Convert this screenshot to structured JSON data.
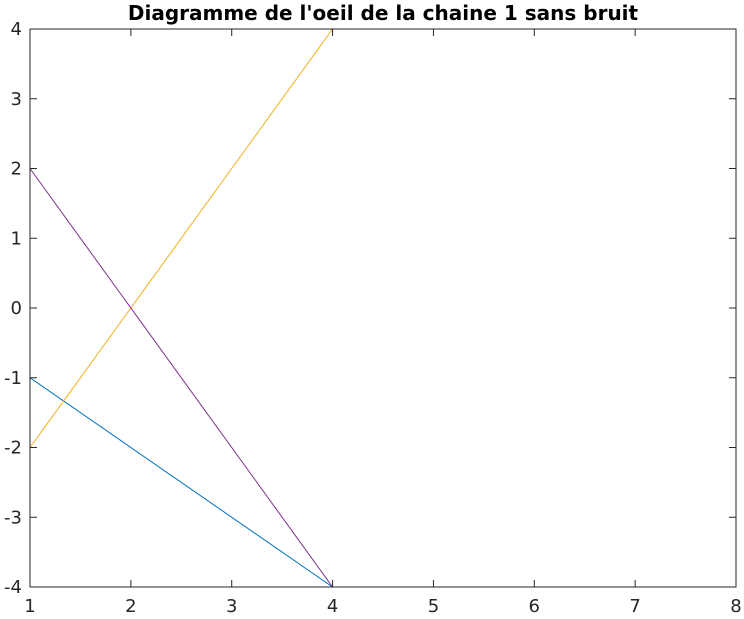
{
  "chart_data": {
    "type": "line",
    "title": "Diagramme de l'oeil de la chaine 1 sans bruit",
    "xlabel": "",
    "ylabel": "",
    "xlim": [
      1,
      8
    ],
    "ylim": [
      -4,
      4
    ],
    "xticks": [
      "1",
      "2",
      "3",
      "4",
      "5",
      "6",
      "7",
      "8"
    ],
    "yticks": [
      "-4",
      "-3",
      "-2",
      "-1",
      "0",
      "1",
      "2",
      "3",
      "4"
    ],
    "grid": false,
    "legend": "none",
    "series": [
      {
        "color": "#0072BD",
        "x": [
          1,
          4
        ],
        "y": [
          -1,
          -4
        ]
      },
      {
        "color": "#0072BD",
        "x": [
          1,
          4
        ],
        "y": [
          4,
          4
        ]
      },
      {
        "color": "#EDB120",
        "x": [
          1,
          4,
          8
        ],
        "y": [
          -2,
          4,
          4
        ]
      },
      {
        "color": "#7E2F8E",
        "x": [
          1,
          4,
          8
        ],
        "y": [
          2,
          -4,
          -4
        ]
      },
      {
        "color": "#4DBEEE",
        "x": [
          1,
          4
        ],
        "y": [
          -4,
          -4
        ]
      }
    ]
  }
}
